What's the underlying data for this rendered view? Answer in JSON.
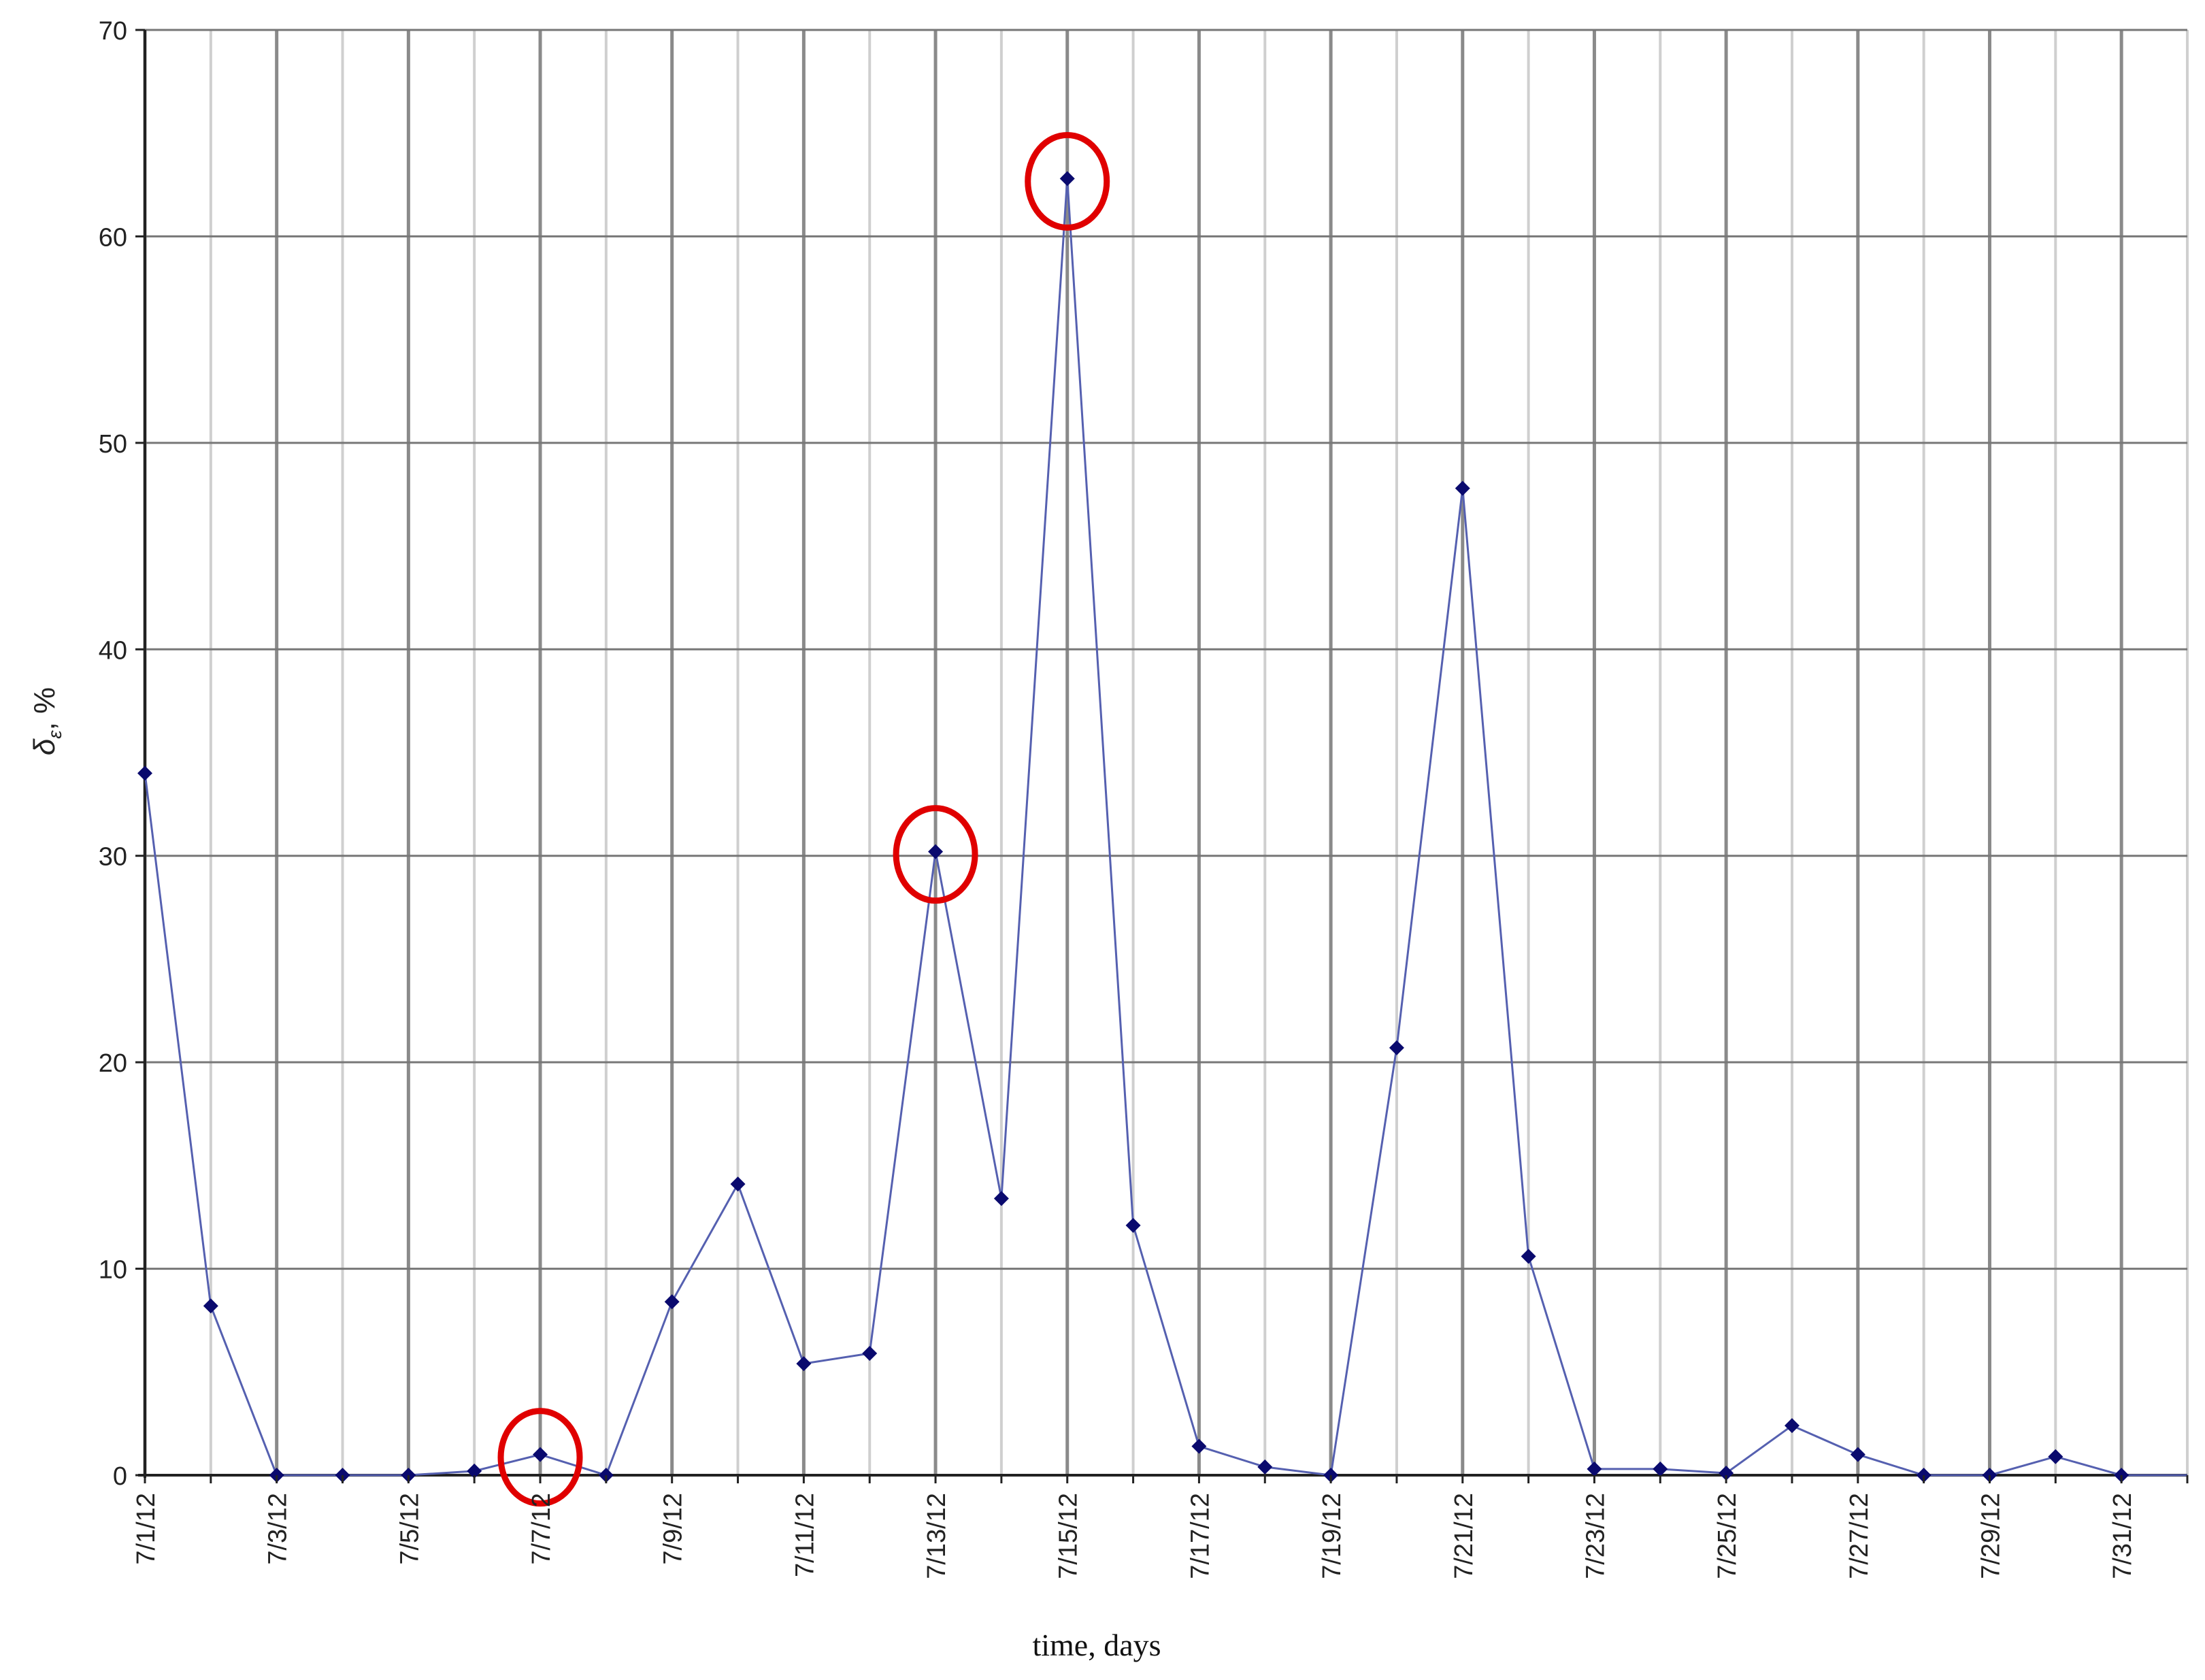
{
  "chart_data": {
    "type": "line",
    "title": "",
    "xlabel": "time, days",
    "ylabel_symbol": "δ",
    "ylabel_subscript": "ε",
    "ylabel_unit": ", %",
    "ylim": [
      0,
      70
    ],
    "yticks": [
      0,
      10,
      20,
      30,
      40,
      50,
      60,
      70
    ],
    "grid": true,
    "x": [
      "7/1/12",
      "7/2/12",
      "7/3/12",
      "7/4/12",
      "7/5/12",
      "7/6/12",
      "7/7/12",
      "7/8/12",
      "7/9/12",
      "7/10/12",
      "7/11/12",
      "7/12/12",
      "7/13/12",
      "7/14/12",
      "7/15/12",
      "7/16/12",
      "7/17/12",
      "7/18/12",
      "7/19/12",
      "7/20/12",
      "7/21/12",
      "7/22/12",
      "7/23/12",
      "7/24/12",
      "7/25/12",
      "7/26/12",
      "7/27/12",
      "7/28/12",
      "7/29/12",
      "7/30/12",
      "7/31/12",
      "8/1/12"
    ],
    "xtick_labels": [
      "7/1/12",
      "7/3/12",
      "7/5/12",
      "7/7/12",
      "7/9/12",
      "7/11/12",
      "7/13/12",
      "7/15/12",
      "7/17/12",
      "7/19/12",
      "7/21/12",
      "7/23/12",
      "7/25/12",
      "7/27/12",
      "7/29/12",
      "7/31/12"
    ],
    "series": [
      {
        "color": "#5560b0",
        "marker_color": "#0a0a6e",
        "values": [
          34.0,
          8.2,
          0.0,
          0.0,
          0.0,
          0.2,
          1.0,
          0.0,
          8.4,
          14.1,
          5.4,
          5.9,
          30.2,
          13.4,
          62.8,
          12.1,
          1.4,
          0.4,
          0.0,
          20.7,
          47.8,
          10.6,
          0.3,
          0.3,
          0.1,
          2.4,
          1.0,
          0.0,
          0.0,
          0.9,
          0.0,
          null
        ]
      }
    ],
    "highlighted_points": [
      "7/7/12",
      "7/13/12",
      "7/15/12"
    ],
    "highlight_color": "#e00000"
  }
}
